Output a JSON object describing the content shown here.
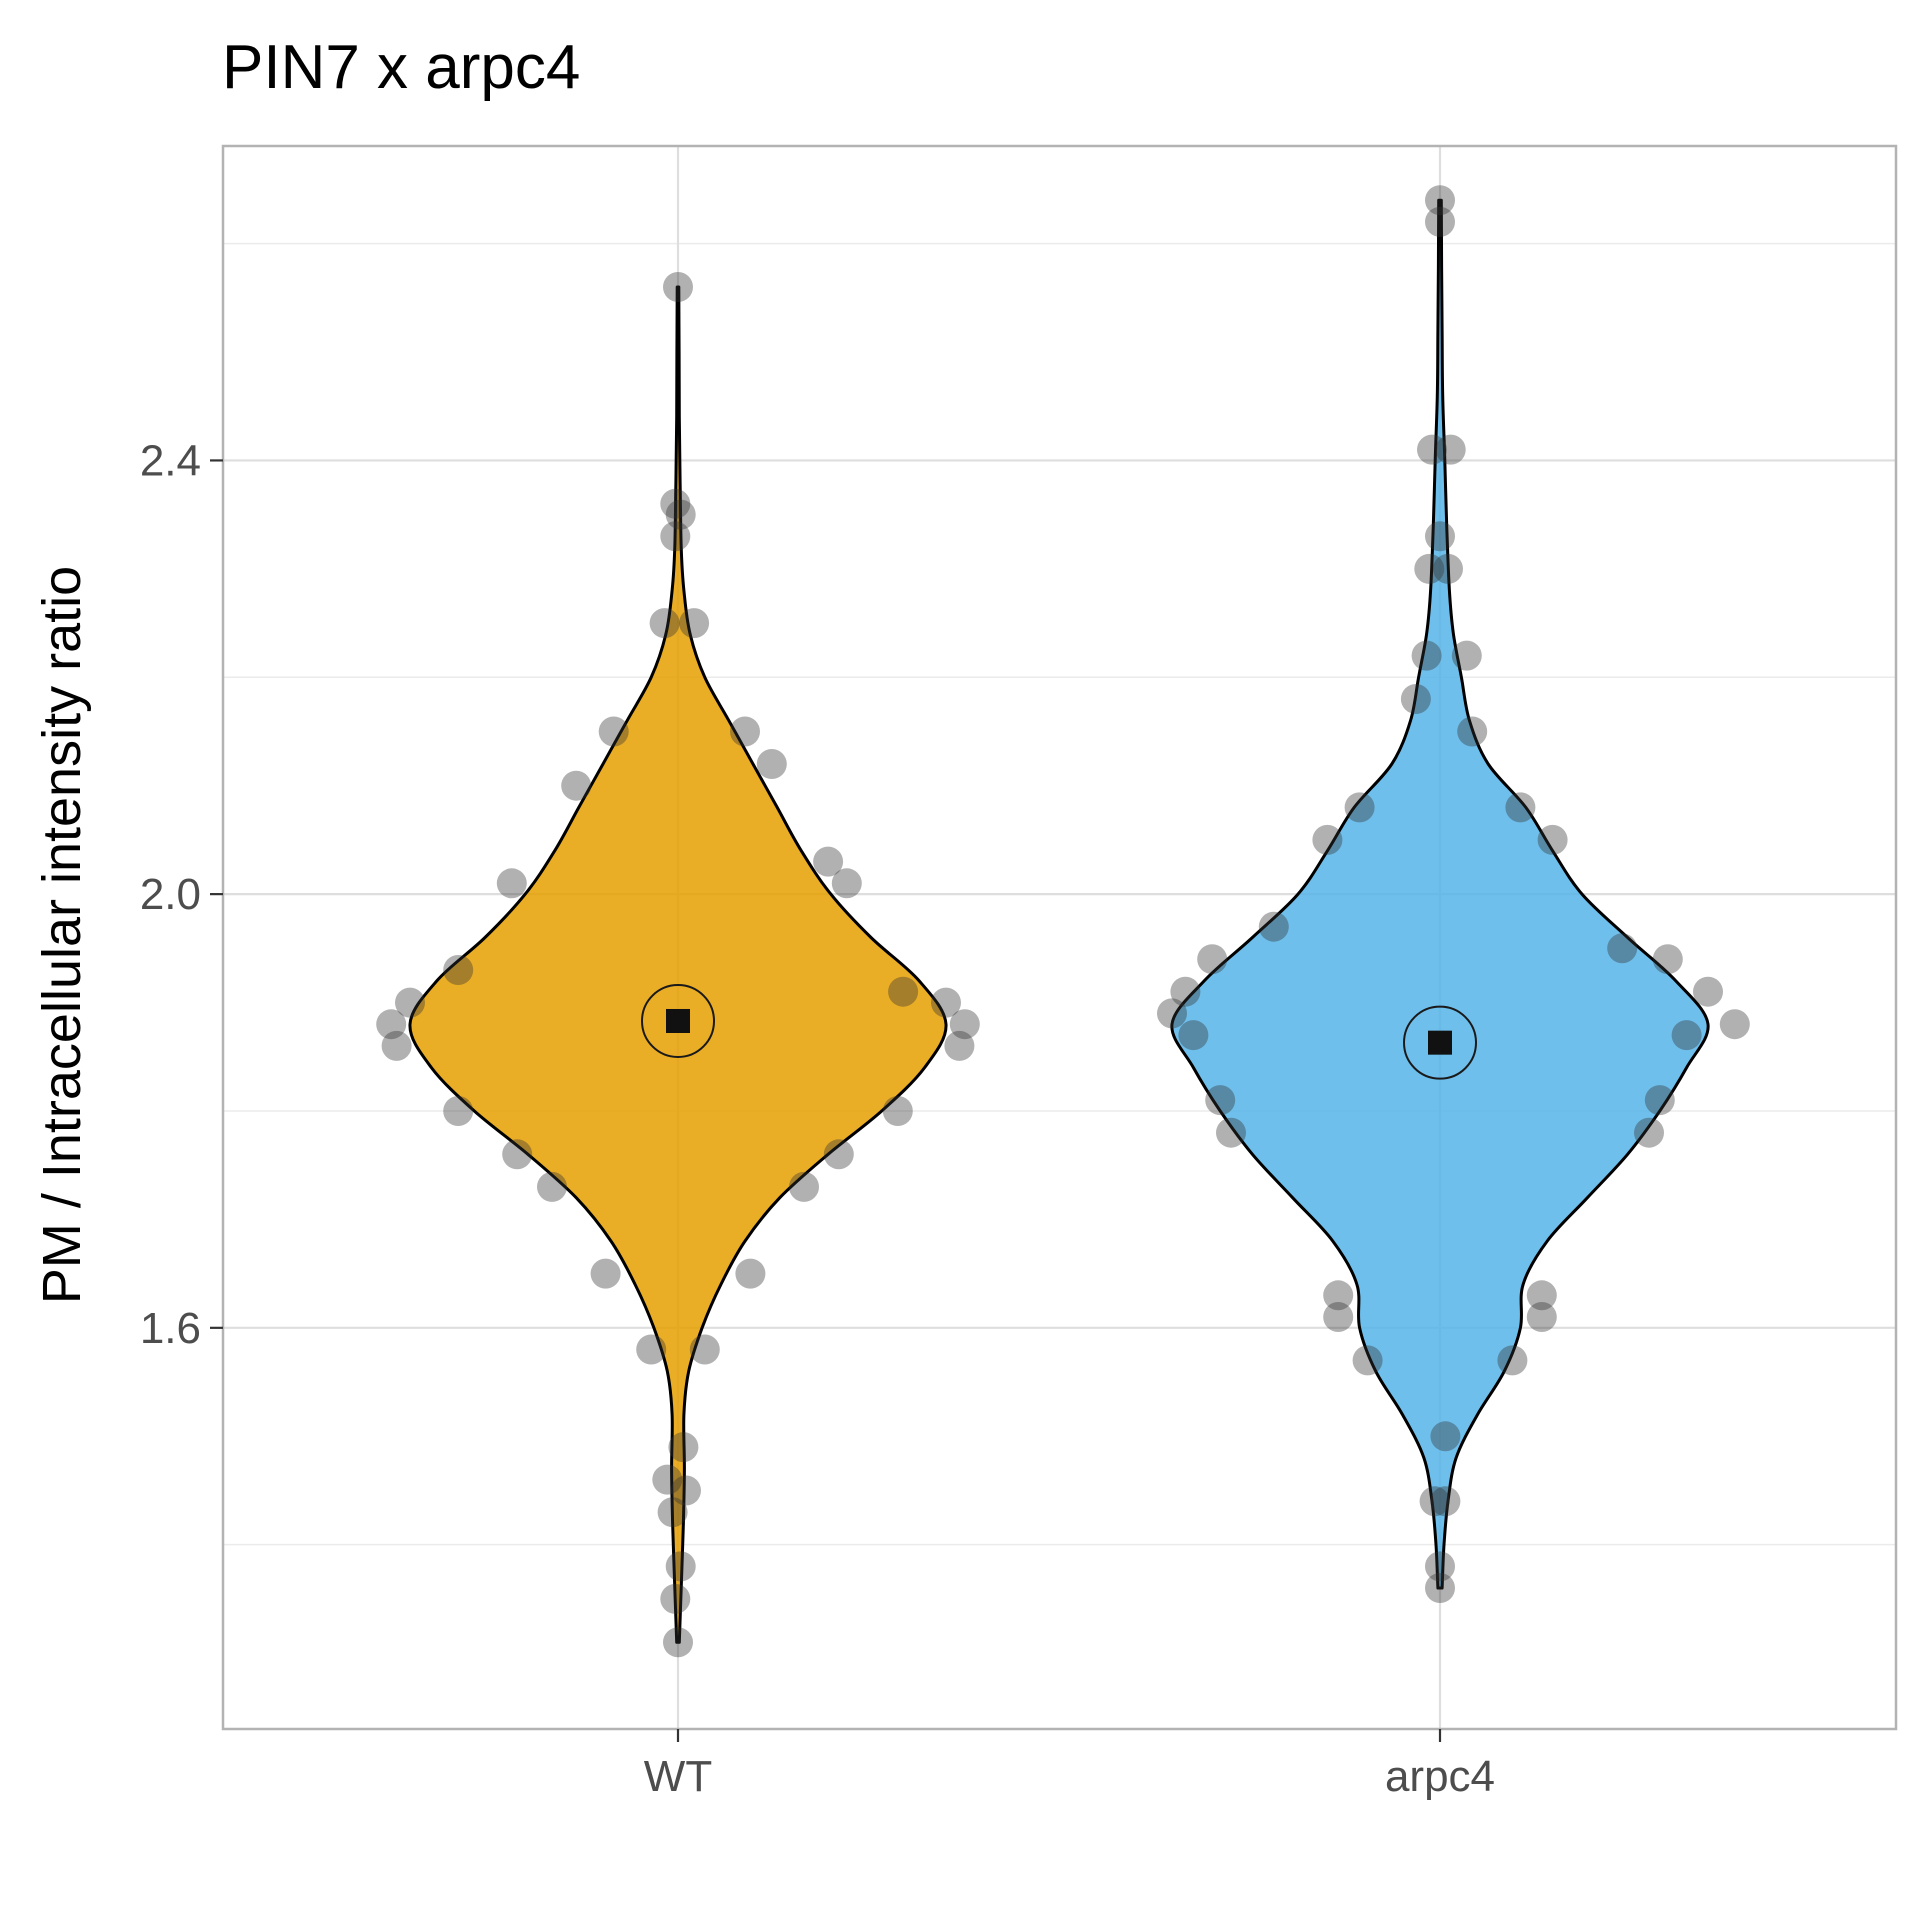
{
  "chart_data": {
    "type": "violin",
    "title": "PIN7 x arpc4",
    "xlabel": "",
    "ylabel": "PM / Intracellular intensity ratio",
    "categories": [
      "WT",
      "arpc4"
    ],
    "ylim": [
      1.23,
      2.69
    ],
    "y_ticks": [
      1.6,
      2.0,
      2.4
    ],
    "y_tick_labels": [
      "1.6",
      "2.0",
      "2.4"
    ],
    "y_minor_ticks": [
      1.4,
      1.8,
      2.2,
      2.6
    ],
    "grid": true,
    "legend": "none",
    "series": [
      {
        "category": "WT",
        "color": "#E69F00",
        "mean": 1.883,
        "min": 1.31,
        "max": 2.56,
        "density": [
          [
            1.31,
            0.005
          ],
          [
            1.36,
            0.012
          ],
          [
            1.42,
            0.02
          ],
          [
            1.47,
            0.024
          ],
          [
            1.52,
            0.022
          ],
          [
            1.56,
            0.04
          ],
          [
            1.6,
            0.09
          ],
          [
            1.64,
            0.16
          ],
          [
            1.68,
            0.25
          ],
          [
            1.72,
            0.38
          ],
          [
            1.76,
            0.56
          ],
          [
            1.8,
            0.76
          ],
          [
            1.84,
            0.92
          ],
          [
            1.88,
            1.0
          ],
          [
            1.92,
            0.9
          ],
          [
            1.96,
            0.72
          ],
          [
            2.0,
            0.57
          ],
          [
            2.04,
            0.46
          ],
          [
            2.08,
            0.37
          ],
          [
            2.12,
            0.28
          ],
          [
            2.16,
            0.19
          ],
          [
            2.2,
            0.1
          ],
          [
            2.24,
            0.045
          ],
          [
            2.28,
            0.022
          ],
          [
            2.32,
            0.012
          ],
          [
            2.38,
            0.008
          ],
          [
            2.44,
            0.005
          ],
          [
            2.5,
            0.004
          ],
          [
            2.56,
            0.003
          ]
        ],
        "points": [
          [
            2.56,
            0.0
          ],
          [
            2.36,
            -0.01
          ],
          [
            2.35,
            0.01
          ],
          [
            2.33,
            -0.01
          ],
          [
            2.25,
            -0.05
          ],
          [
            2.25,
            0.06
          ],
          [
            2.15,
            -0.24
          ],
          [
            2.15,
            0.25
          ],
          [
            2.12,
            0.35
          ],
          [
            2.1,
            -0.38
          ],
          [
            2.01,
            -0.62
          ],
          [
            2.01,
            0.63
          ],
          [
            2.03,
            0.56
          ],
          [
            1.93,
            -0.82
          ],
          [
            1.91,
            0.84
          ],
          [
            1.9,
            -1.0
          ],
          [
            1.9,
            1.0
          ],
          [
            1.88,
            -1.07
          ],
          [
            1.88,
            1.07
          ],
          [
            1.86,
            -1.05
          ],
          [
            1.86,
            1.05
          ],
          [
            1.8,
            -0.82
          ],
          [
            1.8,
            0.82
          ],
          [
            1.76,
            -0.6
          ],
          [
            1.76,
            0.6
          ],
          [
            1.73,
            -0.47
          ],
          [
            1.73,
            0.47
          ],
          [
            1.65,
            -0.27
          ],
          [
            1.65,
            0.27
          ],
          [
            1.58,
            -0.1
          ],
          [
            1.58,
            0.1
          ],
          [
            1.49,
            0.02
          ],
          [
            1.46,
            -0.04
          ],
          [
            1.45,
            0.03
          ],
          [
            1.43,
            -0.02
          ],
          [
            1.38,
            0.01
          ],
          [
            1.35,
            -0.01
          ],
          [
            1.31,
            0.0
          ]
        ]
      },
      {
        "category": "arpc4",
        "color": "#56B4E9",
        "mean": 1.863,
        "min": 1.36,
        "max": 2.64,
        "density": [
          [
            1.36,
            0.008
          ],
          [
            1.4,
            0.015
          ],
          [
            1.44,
            0.03
          ],
          [
            1.48,
            0.06
          ],
          [
            1.52,
            0.14
          ],
          [
            1.56,
            0.24
          ],
          [
            1.6,
            0.3
          ],
          [
            1.64,
            0.31
          ],
          [
            1.68,
            0.4
          ],
          [
            1.72,
            0.55
          ],
          [
            1.76,
            0.7
          ],
          [
            1.8,
            0.82
          ],
          [
            1.84,
            0.92
          ],
          [
            1.88,
            1.0
          ],
          [
            1.92,
            0.88
          ],
          [
            1.96,
            0.7
          ],
          [
            2.0,
            0.53
          ],
          [
            2.04,
            0.42
          ],
          [
            2.08,
            0.32
          ],
          [
            2.12,
            0.18
          ],
          [
            2.16,
            0.11
          ],
          [
            2.2,
            0.08
          ],
          [
            2.24,
            0.05
          ],
          [
            2.28,
            0.035
          ],
          [
            2.34,
            0.025
          ],
          [
            2.4,
            0.018
          ],
          [
            2.46,
            0.01
          ],
          [
            2.52,
            0.008
          ],
          [
            2.58,
            0.006
          ],
          [
            2.64,
            0.005
          ]
        ],
        "points": [
          [
            2.64,
            0.0
          ],
          [
            2.62,
            0.0
          ],
          [
            2.41,
            -0.03
          ],
          [
            2.41,
            0.04
          ],
          [
            2.33,
            0.0
          ],
          [
            2.3,
            -0.04
          ],
          [
            2.3,
            0.03
          ],
          [
            2.22,
            -0.05
          ],
          [
            2.22,
            0.1
          ],
          [
            2.18,
            -0.09
          ],
          [
            2.15,
            0.12
          ],
          [
            2.08,
            -0.3
          ],
          [
            2.08,
            0.3
          ],
          [
            2.05,
            -0.42
          ],
          [
            2.05,
            0.42
          ],
          [
            1.97,
            -0.62
          ],
          [
            1.95,
            0.68
          ],
          [
            1.94,
            -0.85
          ],
          [
            1.94,
            0.85
          ],
          [
            1.91,
            -0.95
          ],
          [
            1.91,
            1.0
          ],
          [
            1.89,
            -1.0
          ],
          [
            1.88,
            1.1
          ],
          [
            1.87,
            -0.92
          ],
          [
            1.87,
            0.92
          ],
          [
            1.81,
            -0.82
          ],
          [
            1.81,
            0.82
          ],
          [
            1.78,
            -0.78
          ],
          [
            1.78,
            0.78
          ],
          [
            1.63,
            -0.38
          ],
          [
            1.63,
            0.38
          ],
          [
            1.61,
            -0.38
          ],
          [
            1.61,
            0.38
          ],
          [
            1.57,
            -0.27
          ],
          [
            1.57,
            0.27
          ],
          [
            1.5,
            0.02
          ],
          [
            1.44,
            -0.02
          ],
          [
            1.44,
            0.02
          ],
          [
            1.38,
            0.0
          ],
          [
            1.36,
            0.0
          ]
        ]
      }
    ]
  }
}
